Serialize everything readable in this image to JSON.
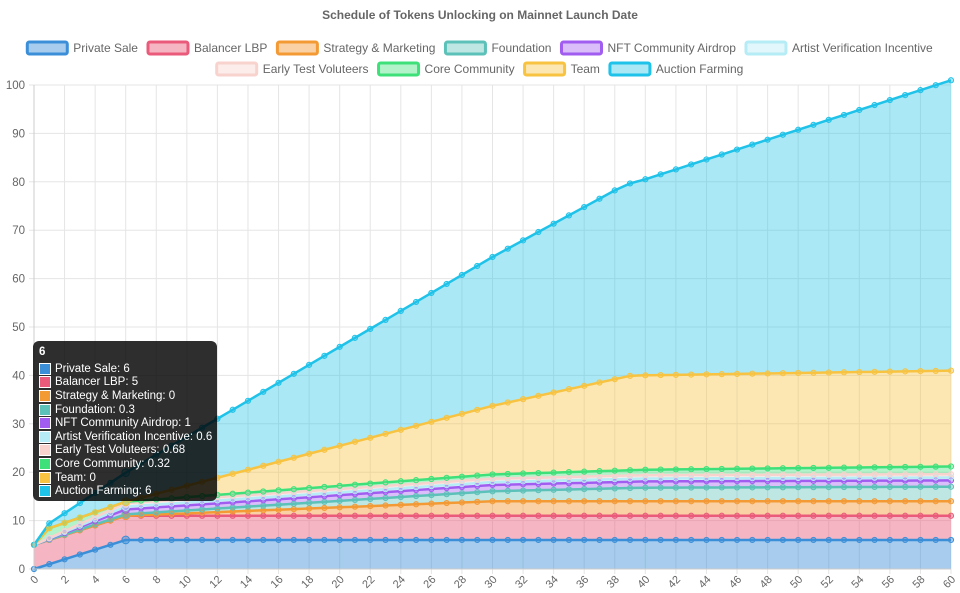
{
  "chart_data": {
    "type": "area",
    "title": "Schedule of Tokens Unlocking on Mainnet Launch Date",
    "xlabel": "",
    "ylabel": "",
    "stacked": true,
    "xlim": [
      0,
      60
    ],
    "ylim": [
      0,
      100
    ],
    "x_ticks": [
      0,
      2,
      4,
      6,
      8,
      10,
      12,
      14,
      16,
      18,
      20,
      22,
      24,
      26,
      28,
      30,
      32,
      34,
      36,
      38,
      40,
      42,
      44,
      46,
      48,
      50,
      52,
      54,
      56,
      58,
      60
    ],
    "y_ticks": [
      0,
      10,
      20,
      30,
      40,
      50,
      60,
      70,
      80,
      90,
      100
    ],
    "grid": true,
    "legend_position": "top",
    "series": [
      {
        "name": "Private Sale",
        "color": "#3b8fd8",
        "fill": "rgba(59,143,216,0.45)",
        "points": [
          [
            0,
            0
          ],
          [
            6,
            6
          ],
          [
            60,
            6
          ]
        ]
      },
      {
        "name": "Balancer LBP",
        "color": "#ea5a7a",
        "fill": "rgba(234,90,122,0.45)",
        "points": [
          [
            0,
            5
          ],
          [
            6,
            5
          ],
          [
            60,
            5
          ]
        ]
      },
      {
        "name": "Strategy & Marketing",
        "color": "#f39a35",
        "fill": "rgba(243,154,53,0.45)",
        "points": [
          [
            0,
            0
          ],
          [
            6,
            0
          ],
          [
            30,
            3
          ],
          [
            60,
            3
          ]
        ]
      },
      {
        "name": "Foundation",
        "color": "#5cc1b8",
        "fill": "rgba(92,193,184,0.40)",
        "points": [
          [
            0,
            0
          ],
          [
            6,
            0.3
          ],
          [
            40,
            2.8
          ],
          [
            60,
            3
          ]
        ]
      },
      {
        "name": "NFT Community Airdrop",
        "color": "#a05df0",
        "fill": "rgba(160,93,240,0.40)",
        "points": [
          [
            0,
            0
          ],
          [
            6,
            1
          ],
          [
            30,
            1.3
          ],
          [
            60,
            1.3
          ]
        ]
      },
      {
        "name": "Artist Verification Incentive",
        "color": "#b6ecf6",
        "fill": "rgba(182,236,246,0.40)",
        "points": [
          [
            0,
            0
          ],
          [
            6,
            0.6
          ],
          [
            60,
            0.6
          ]
        ]
      },
      {
        "name": "Early Test Voluteers",
        "color": "#f8d2cc",
        "fill": "rgba(248,210,204,0.40)",
        "points": [
          [
            0,
            0
          ],
          [
            6,
            0.68
          ],
          [
            60,
            0.68
          ]
        ]
      },
      {
        "name": "Core Community",
        "color": "#3ee07a",
        "fill": "rgba(62,224,122,0.40)",
        "points": [
          [
            0,
            0
          ],
          [
            1,
            2
          ],
          [
            6,
            0.32
          ],
          [
            60,
            1.6
          ]
        ]
      },
      {
        "name": "Team",
        "color": "#f7c341",
        "fill": "rgba(247,195,65,0.40)",
        "points": [
          [
            0,
            0
          ],
          [
            6,
            0
          ],
          [
            39,
            19.5
          ],
          [
            60,
            19.8
          ]
        ]
      },
      {
        "name": "Auction Farming",
        "color": "#1fc2e8",
        "fill": "rgba(31,194,232,0.38)",
        "points": [
          [
            0,
            0
          ],
          [
            6,
            6
          ],
          [
            38,
            39
          ],
          [
            40,
            40.5
          ],
          [
            60,
            60
          ]
        ]
      }
    ],
    "tooltip": {
      "x": 6,
      "title": "6",
      "rows": [
        {
          "label": "Private Sale: 6",
          "color": "#3b8fd8"
        },
        {
          "label": "Balancer LBP: 5",
          "color": "#ea5a7a"
        },
        {
          "label": "Strategy & Marketing: 0",
          "color": "#f39a35"
        },
        {
          "label": "Foundation: 0.3",
          "color": "#5cc1b8"
        },
        {
          "label": "NFT Community Airdrop: 1",
          "color": "#a05df0"
        },
        {
          "label": "Artist Verification Incentive: 0.6",
          "color": "#b6ecf6"
        },
        {
          "label": "Early Test Voluteers: 0.68",
          "color": "#f8d2cc"
        },
        {
          "label": "Core Community: 0.32",
          "color": "#3ee07a"
        },
        {
          "label": "Team: 0",
          "color": "#f7c341"
        },
        {
          "label": "Auction Farming: 6",
          "color": "#1fc2e8"
        }
      ]
    }
  }
}
